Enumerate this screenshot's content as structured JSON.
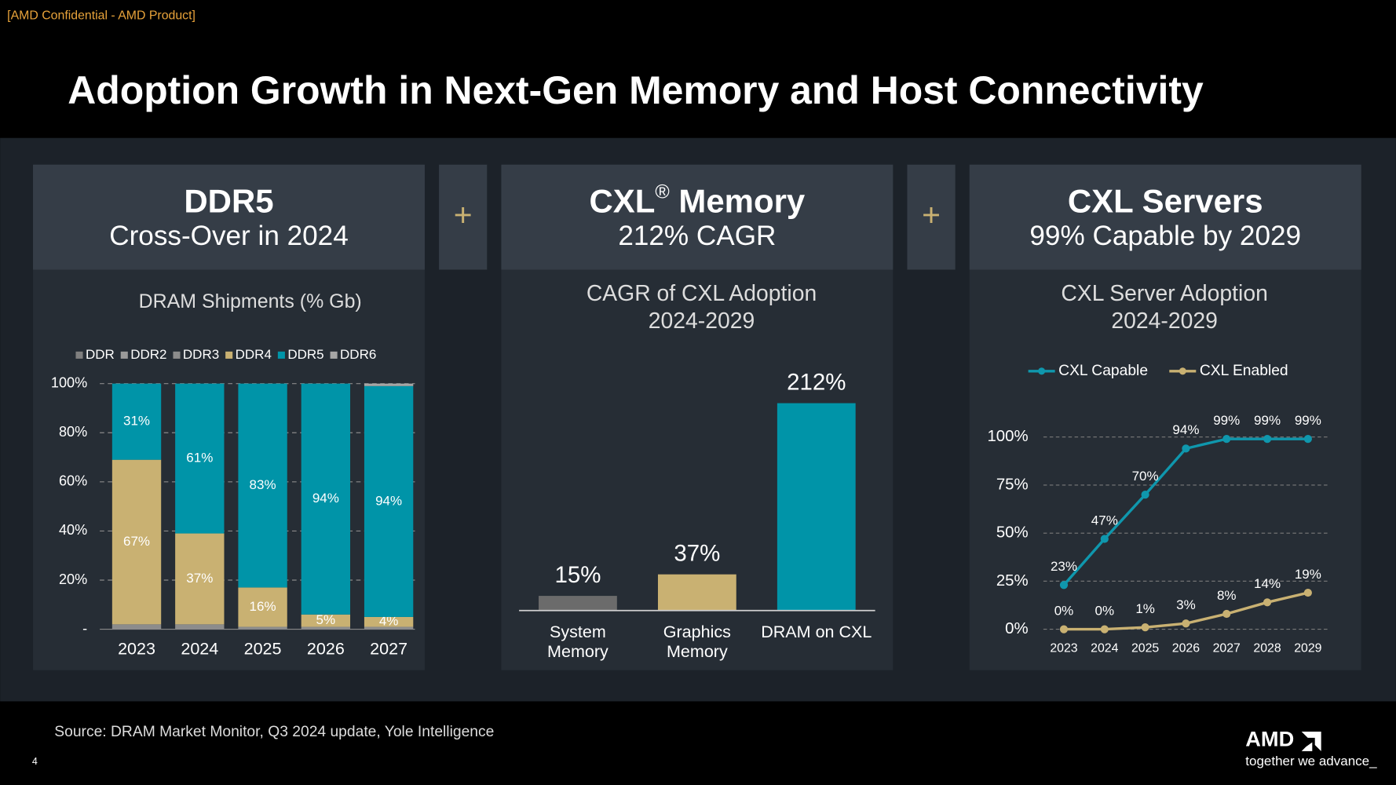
{
  "confidential": "[AMD Confidential - AMD Product]",
  "title": "Adoption Growth in Next-Gen Memory and Host Connectivity",
  "panels": [
    {
      "heading": "DDR5",
      "subheading": "Cross-Over in 2024"
    },
    {
      "heading": "CXL® Memory",
      "subheading": "212% CAGR"
    },
    {
      "heading": "CXL Servers",
      "subheading": "99% Capable by 2029"
    }
  ],
  "connectors": [
    "+",
    "+"
  ],
  "chart_data": [
    {
      "type": "stacked_bar",
      "title": [
        "DRAM Shipments (% Gb)"
      ],
      "categories": [
        "2023",
        "2024",
        "2025",
        "2026",
        "2027"
      ],
      "series": [
        {
          "name": "DDR",
          "color": "#7f7f7f",
          "values": [
            0,
            0,
            0,
            0,
            0
          ]
        },
        {
          "name": "DDR2",
          "color": "#9a9a9a",
          "values": [
            0,
            0,
            0,
            0,
            0
          ]
        },
        {
          "name": "DDR3",
          "color": "#8c8c8c",
          "values": [
            2,
            2,
            1,
            1,
            1
          ]
        },
        {
          "name": "DDR4",
          "color": "#c9b172",
          "values": [
            67,
            37,
            16,
            5,
            4
          ],
          "value_labels": [
            "67%",
            "37%",
            "16%",
            "5%",
            "4%"
          ]
        },
        {
          "name": "DDR5",
          "color": "#0094a8",
          "values": [
            31,
            61,
            83,
            94,
            94
          ],
          "value_labels": [
            "31%",
            "61%",
            "83%",
            "94%",
            "94%"
          ]
        },
        {
          "name": "DDR6",
          "color": "#a6a6a6",
          "values": [
            0,
            0,
            0,
            0,
            1
          ]
        }
      ],
      "ylim": [
        0,
        100
      ],
      "yticks": [
        {
          "value": 0,
          "label": "-"
        },
        {
          "value": 20,
          "label": "20%"
        },
        {
          "value": 40,
          "label": "40%"
        },
        {
          "value": 60,
          "label": "60%"
        },
        {
          "value": 80,
          "label": "80%"
        },
        {
          "value": 100,
          "label": "100%"
        }
      ],
      "grid": true,
      "legend": "top"
    },
    {
      "type": "bar",
      "title": [
        "CAGR of CXL Adoption",
        "2024-2029"
      ],
      "categories": [
        "System Memory",
        "Graphics Memory",
        "DRAM on CXL"
      ],
      "values": [
        15,
        37,
        212
      ],
      "value_labels": [
        "15%",
        "37%",
        "212%"
      ],
      "colors": [
        "#6b6b6b",
        "#c9b172",
        "#0094a8"
      ]
    },
    {
      "type": "line",
      "title": [
        "CXL Server Adoption",
        "2024-2029"
      ],
      "categories": [
        "2023",
        "2024",
        "2025",
        "2026",
        "2027",
        "2028",
        "2029"
      ],
      "series": [
        {
          "name": "CXL Capable",
          "color": "#0f97ad",
          "values": [
            23,
            47,
            70,
            94,
            99,
            99,
            99
          ],
          "value_labels": [
            "23%",
            "47%",
            "70%",
            "94%",
            "99%",
            "99%",
            "99%"
          ]
        },
        {
          "name": "CXL Enabled",
          "color": "#c9b172",
          "values": [
            0,
            0,
            1,
            3,
            8,
            14,
            19
          ],
          "value_labels": [
            "0%",
            "0%",
            "1%",
            "3%",
            "8%",
            "14%",
            "19%"
          ]
        }
      ],
      "ylim": [
        0,
        100
      ],
      "yticks": [
        {
          "value": 0,
          "label": "0%"
        },
        {
          "value": 25,
          "label": "25%"
        },
        {
          "value": 50,
          "label": "50%"
        },
        {
          "value": 75,
          "label": "75%"
        },
        {
          "value": 100,
          "label": "100%"
        }
      ],
      "grid": true,
      "legend": "top"
    }
  ],
  "footer": {
    "source": "Source: DRAM Market Monitor, Q3 2024 update, Yole Intelligence",
    "page": "4",
    "logo": "AMD",
    "tagline": "together we advance_"
  }
}
